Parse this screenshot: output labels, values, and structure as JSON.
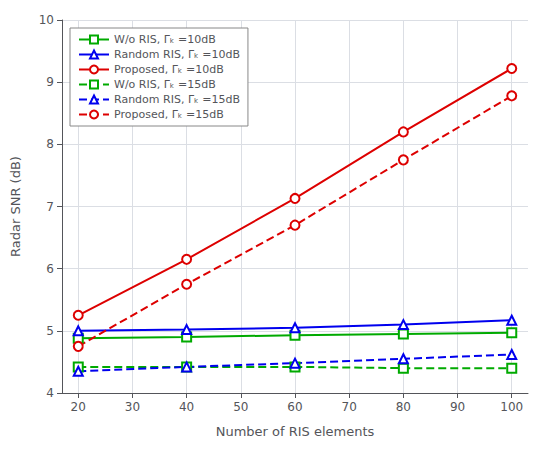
{
  "chart_data": {
    "type": "line",
    "xlabel": "Number of RIS elements",
    "ylabel": "Radar SNR (dB)",
    "x": [
      20,
      40,
      60,
      80,
      100
    ],
    "series": [
      {
        "name": "W/o RIS, Γₖ =10dB",
        "color": "#00aa00",
        "marker": "square",
        "line_style": "solid",
        "values": [
          4.88,
          4.9,
          4.93,
          4.95,
          4.97
        ]
      },
      {
        "name": "Random RIS, Γₖ =10dB",
        "color": "#0000ee",
        "marker": "triangle",
        "line_style": "solid",
        "values": [
          5.0,
          5.02,
          5.05,
          5.1,
          5.17
        ]
      },
      {
        "name": "Proposed, Γₖ =10dB",
        "color": "#dd0000",
        "marker": "circle",
        "line_style": "solid",
        "values": [
          5.25,
          6.15,
          7.13,
          8.2,
          9.22
        ]
      },
      {
        "name": "W/o RIS, Γₖ =15dB",
        "color": "#00aa00",
        "marker": "square",
        "line_style": "dashed",
        "values": [
          4.42,
          4.42,
          4.42,
          4.4,
          4.4
        ]
      },
      {
        "name": "Random RIS, Γₖ =15dB",
        "color": "#0000ee",
        "marker": "triangle",
        "line_style": "dashed",
        "values": [
          4.35,
          4.42,
          4.48,
          4.55,
          4.62
        ]
      },
      {
        "name": "Proposed, Γₖ =15dB",
        "color": "#dd0000",
        "marker": "circle",
        "line_style": "dashed",
        "values": [
          4.75,
          5.75,
          6.7,
          7.75,
          8.78
        ]
      }
    ],
    "xlim": [
      17,
      103
    ],
    "ylim": [
      4.0,
      10.0
    ],
    "xticks": [
      20,
      30,
      40,
      50,
      60,
      70,
      80,
      90,
      100
    ],
    "yticks": [
      4,
      5,
      6,
      7,
      8,
      9,
      10
    ],
    "grid": true,
    "legend": "upper left"
  }
}
